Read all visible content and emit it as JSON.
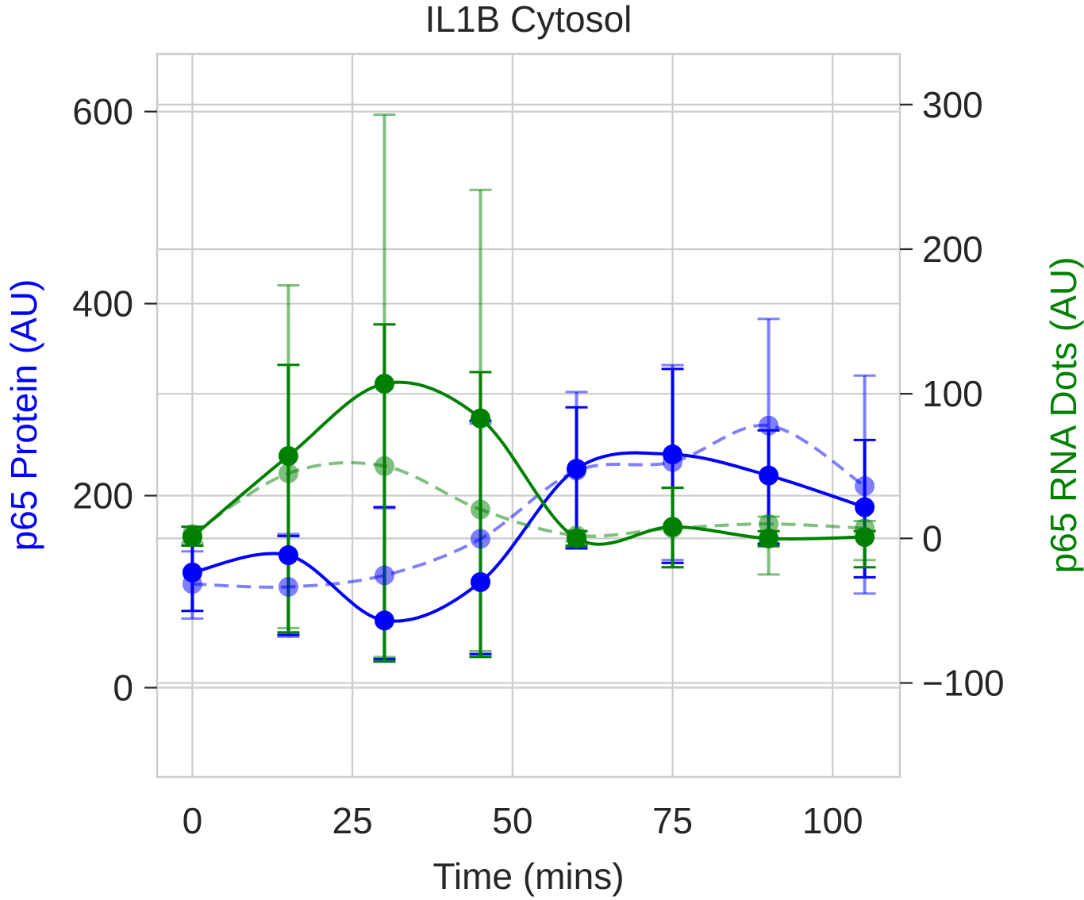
{
  "chart_data": {
    "type": "line",
    "title": "IL1B Cytosol",
    "xlabel": "Time (mins)",
    "ylabel_left": "p65 Protein (AU)",
    "ylabel_right": "p65 RNA Dots (AU)",
    "xlim": [
      -5.5,
      110.5
    ],
    "ylim_left": [
      -93,
      660
    ],
    "ylim_right": [
      -165,
      335
    ],
    "x_ticks": [
      0,
      25,
      50,
      75,
      100
    ],
    "y_left_ticks": [
      0,
      200,
      400,
      600
    ],
    "y_right_ticks": [
      -100,
      0,
      100,
      200,
      300
    ],
    "grid": true,
    "colors": {
      "protein": "#0000ff",
      "rna": "#008000",
      "grid": "#cccccc",
      "frame": "#cccccc",
      "text": "#262626"
    },
    "series": [
      {
        "axis": "left",
        "color": "#0000ff",
        "style": "solid",
        "alpha": 1.0,
        "x": [
          0,
          15,
          30,
          45,
          60,
          75,
          90,
          105
        ],
        "y": [
          120,
          138,
          70,
          110,
          228,
          243,
          221,
          188
        ],
        "err_low": [
          80,
          55,
          30,
          35,
          145,
          130,
          150,
          115
        ],
        "err_high": [
          148,
          158,
          188,
          278,
          292,
          332,
          268,
          258
        ]
      },
      {
        "axis": "left",
        "color": "#0000ff",
        "style": "dashed",
        "alpha": 0.5,
        "x": [
          0,
          15,
          30,
          45,
          60,
          75,
          90,
          105
        ],
        "y": [
          108,
          105,
          117,
          155,
          226,
          235,
          273,
          210
        ],
        "err_low": [
          72,
          53,
          27,
          32,
          147,
          133,
          147,
          98
        ],
        "err_high": [
          142,
          160,
          187,
          275,
          308,
          336,
          384,
          325
        ]
      },
      {
        "axis": "right",
        "color": "#008000",
        "style": "solid",
        "alpha": 1.0,
        "x": [
          0,
          15,
          30,
          45,
          60,
          75,
          90,
          105
        ],
        "y": [
          1,
          57,
          107,
          83,
          0,
          8,
          0,
          1
        ],
        "err_low": [
          -5,
          -65,
          -85,
          -82,
          -5,
          -20,
          -5,
          -20
        ],
        "err_high": [
          8,
          120,
          148,
          115,
          5,
          35,
          5,
          5
        ]
      },
      {
        "axis": "right",
        "color": "#008000",
        "style": "dashed",
        "alpha": 0.5,
        "x": [
          0,
          15,
          30,
          45,
          60,
          75,
          90,
          105
        ],
        "y": [
          3,
          45,
          50,
          20,
          2,
          7,
          10,
          7
        ],
        "err_low": [
          -3,
          -62,
          -82,
          -78,
          -2,
          -20,
          -25,
          -15
        ],
        "err_high": [
          8,
          175,
          293,
          241,
          5,
          35,
          15,
          12
        ]
      }
    ]
  }
}
